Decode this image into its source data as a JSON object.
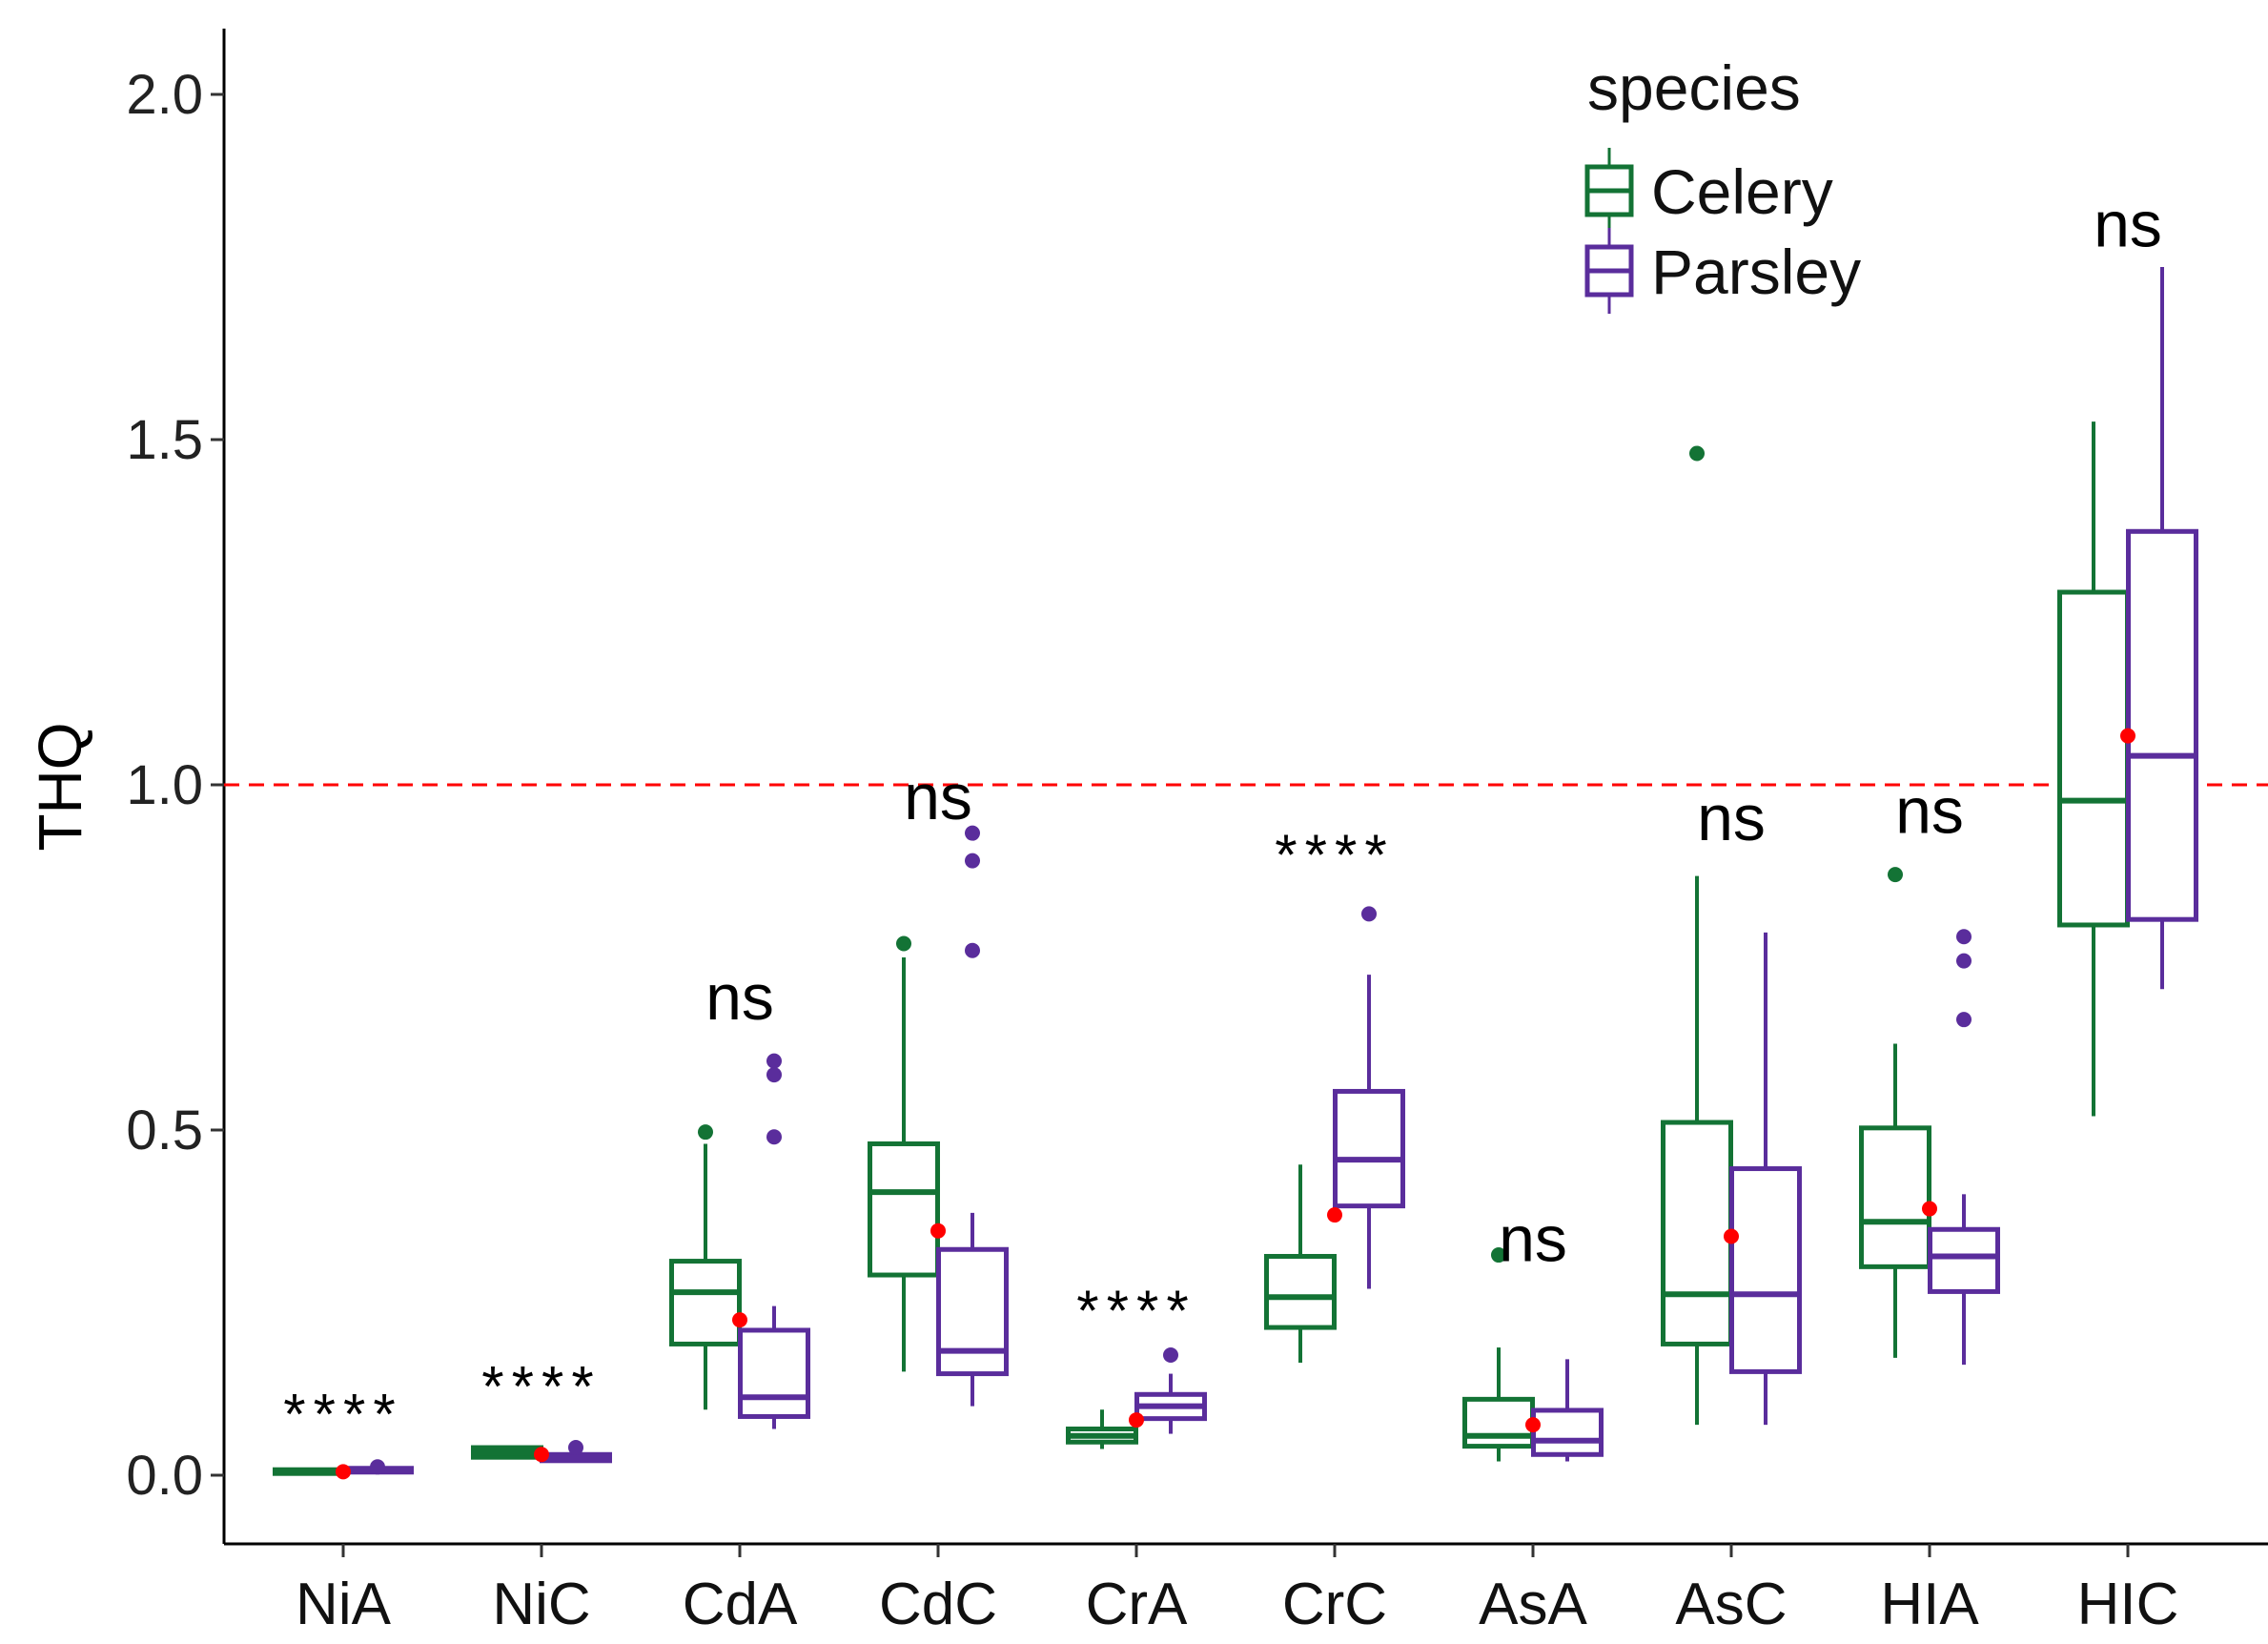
{
  "chart_data": {
    "type": "box",
    "title": "",
    "xlabel": "",
    "ylabel": "THQ",
    "ylim": [
      -0.1,
      2.1
    ],
    "yticks": [
      "0.0",
      "0.5",
      "1.0",
      "1.5",
      "2.0"
    ],
    "ytick_values": [
      0,
      0.5,
      1.0,
      1.5,
      2.0
    ],
    "reference_line": {
      "y": 1.0,
      "color": "#ff0000",
      "style": "dashed"
    },
    "legend": {
      "title": "species",
      "position": "top-right",
      "entries": [
        "Celery",
        "Parsley"
      ]
    },
    "colors": {
      "Celery": "#137335",
      "Parsley": "#5a2d9c",
      "mean": "#ff0000"
    },
    "categories": [
      "NiA",
      "NiC",
      "CdA",
      "CdC",
      "CrA",
      "CrC",
      "AsA",
      "AsC",
      "HIA",
      "HIC"
    ],
    "significance": [
      "****",
      "****",
      "ns",
      "ns",
      "****",
      "****",
      "ns",
      "ns",
      "ns",
      "ns"
    ],
    "significance_y": [
      0.06,
      0.1,
      0.66,
      0.95,
      0.21,
      0.87,
      0.31,
      0.92,
      0.93,
      1.78
    ],
    "means": [
      0.005,
      0.03,
      0.225,
      0.354,
      0.08,
      0.377,
      0.073,
      0.346,
      0.386,
      1.071
    ],
    "series": [
      {
        "name": "Celery",
        "boxes": [
          {
            "low": 0.003,
            "q1": 0.004,
            "median": 0.006,
            "q3": 0.008,
            "high": 0.01,
            "outliers": []
          },
          {
            "low": 0.025,
            "q1": 0.026,
            "median": 0.033,
            "q3": 0.04,
            "high": 0.042,
            "outliers": []
          },
          {
            "low": 0.095,
            "q1": 0.19,
            "median": 0.265,
            "q3": 0.31,
            "high": 0.48,
            "outliers": [
              0.497
            ]
          },
          {
            "low": 0.15,
            "q1": 0.29,
            "median": 0.41,
            "q3": 0.48,
            "high": 0.75,
            "outliers": [
              0.77
            ]
          },
          {
            "low": 0.038,
            "q1": 0.048,
            "median": 0.057,
            "q3": 0.067,
            "high": 0.095,
            "outliers": []
          },
          {
            "low": 0.163,
            "q1": 0.214,
            "median": 0.258,
            "q3": 0.317,
            "high": 0.45,
            "outliers": []
          },
          {
            "low": 0.02,
            "q1": 0.042,
            "median": 0.057,
            "q3": 0.11,
            "high": 0.185,
            "outliers": [
              0.319
            ]
          },
          {
            "low": 0.073,
            "q1": 0.19,
            "median": 0.262,
            "q3": 0.511,
            "high": 0.868,
            "outliers": [
              1.48
            ]
          },
          {
            "low": 0.17,
            "q1": 0.302,
            "median": 0.367,
            "q3": 0.503,
            "high": 0.625,
            "outliers": [
              0.87
            ]
          },
          {
            "low": 0.52,
            "q1": 0.797,
            "median": 0.977,
            "q3": 1.279,
            "high": 1.526,
            "outliers": []
          }
        ]
      },
      {
        "name": "Parsley",
        "boxes": [
          {
            "low": 0.004,
            "q1": 0.005,
            "median": 0.007,
            "q3": 0.01,
            "high": 0.012,
            "outliers": [
              0.012
            ]
          },
          {
            "low": 0.02,
            "q1": 0.021,
            "median": 0.026,
            "q3": 0.03,
            "high": 0.032,
            "outliers": [
              0.04
            ]
          },
          {
            "low": 0.067,
            "q1": 0.085,
            "median": 0.113,
            "q3": 0.21,
            "high": 0.245,
            "outliers": [
              0.6,
              0.58,
              0.49
            ]
          },
          {
            "low": 0.1,
            "q1": 0.147,
            "median": 0.18,
            "q3": 0.327,
            "high": 0.38,
            "outliers": [
              0.93,
              0.89,
              0.76
            ]
          },
          {
            "low": 0.06,
            "q1": 0.082,
            "median": 0.1,
            "q3": 0.117,
            "high": 0.147,
            "outliers": [
              0.174
            ]
          },
          {
            "low": 0.27,
            "q1": 0.39,
            "median": 0.457,
            "q3": 0.556,
            "high": 0.725,
            "outliers": [
              0.813
            ]
          },
          {
            "low": 0.02,
            "q1": 0.03,
            "median": 0.05,
            "q3": 0.094,
            "high": 0.168,
            "outliers": []
          },
          {
            "low": 0.073,
            "q1": 0.15,
            "median": 0.262,
            "q3": 0.444,
            "high": 0.786,
            "outliers": []
          },
          {
            "low": 0.16,
            "q1": 0.266,
            "median": 0.317,
            "q3": 0.356,
            "high": 0.407,
            "outliers": [
              0.78,
              0.745,
              0.66
            ]
          },
          {
            "low": 0.704,
            "q1": 0.805,
            "median": 1.042,
            "q3": 1.367,
            "high": 1.75,
            "outliers": []
          }
        ]
      }
    ]
  }
}
